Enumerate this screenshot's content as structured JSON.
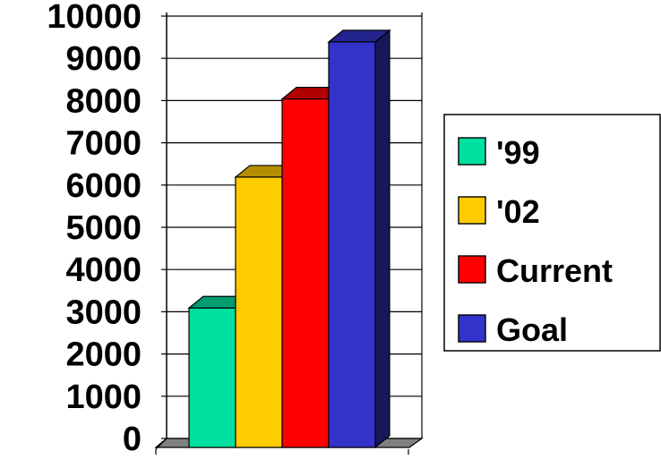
{
  "chart_data": {
    "type": "bar",
    "title": "",
    "xlabel": "",
    "ylabel": "",
    "ylim": [
      0,
      10000
    ],
    "yticks": [
      0,
      1000,
      2000,
      3000,
      4000,
      5000,
      6000,
      7000,
      8000,
      9000,
      10000
    ],
    "grid": true,
    "three_d": true,
    "legend_position": "right",
    "series": [
      {
        "name": "'99",
        "value": 3300,
        "color": "#00e0a0"
      },
      {
        "name": "'02",
        "value": 6400,
        "color": "#ffcc00"
      },
      {
        "name": "Current",
        "value": 8250,
        "color": "#ff0000"
      },
      {
        "name": "Goal",
        "value": 9600,
        "color": "#3333cc"
      }
    ]
  }
}
